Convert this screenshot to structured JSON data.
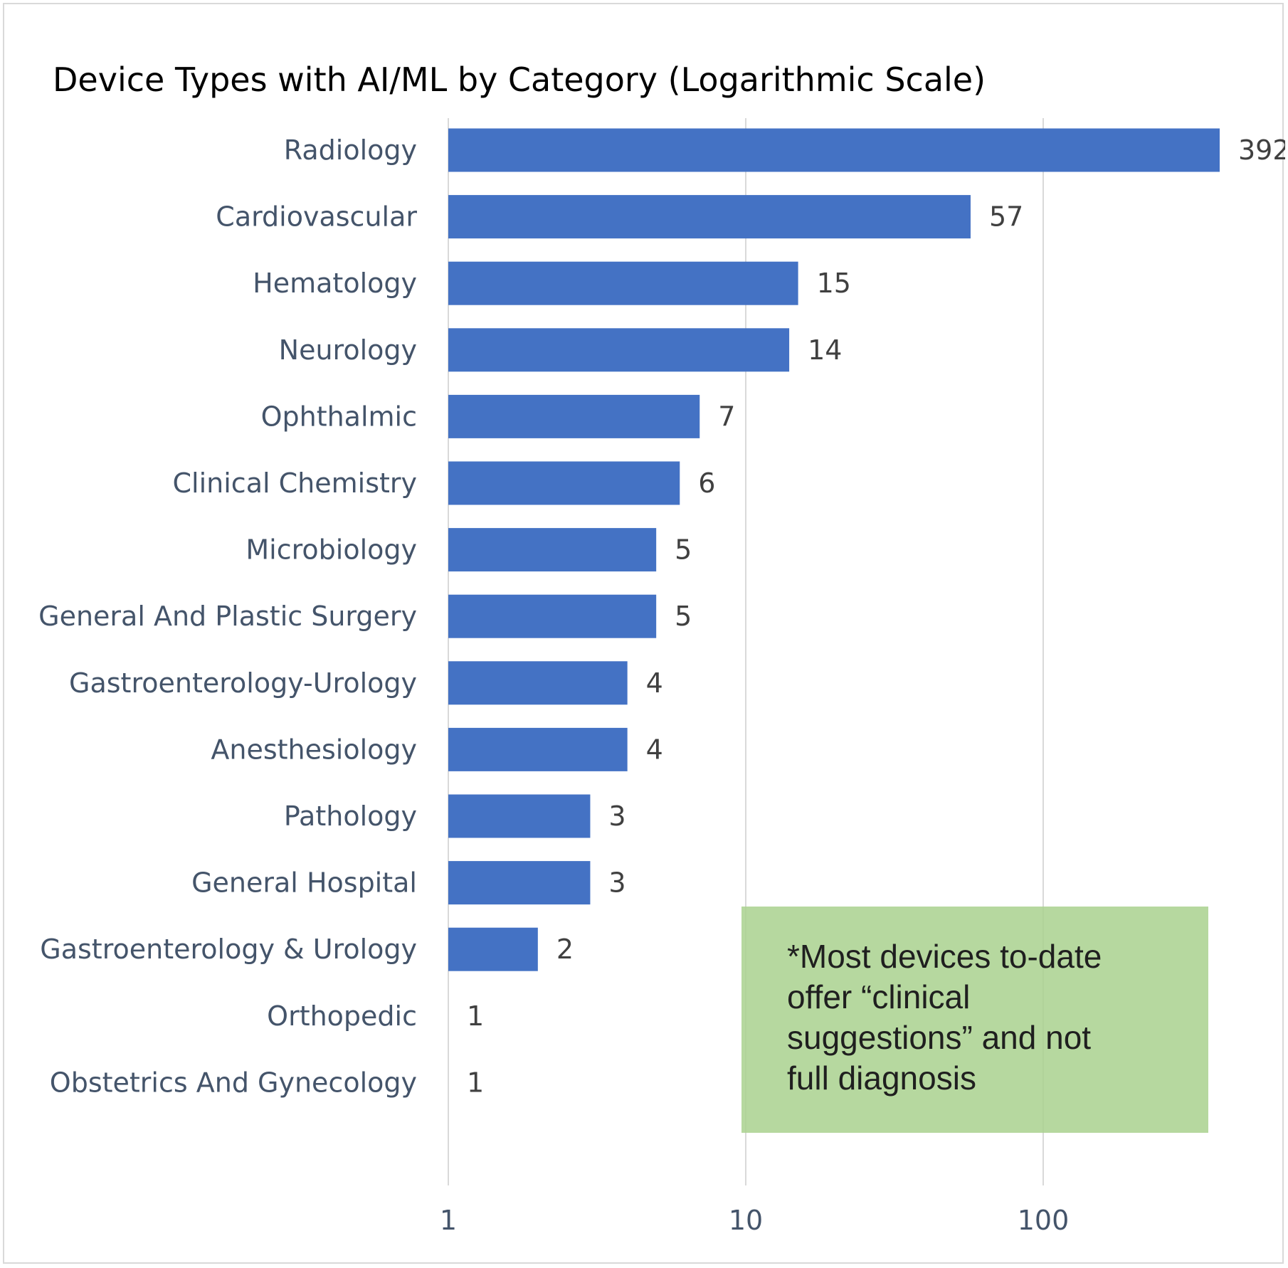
{
  "chart_data": {
    "type": "bar",
    "orientation": "horizontal",
    "title": "Device Types with AI/ML by Category (Logarithmic Scale)",
    "xlabel": "",
    "ylabel": "",
    "x_scale": "log",
    "xlim": [
      1,
      450
    ],
    "x_ticks": [
      "1",
      "10",
      "100"
    ],
    "grid": true,
    "bar_color": "#4472c4",
    "categories": [
      "Radiology",
      "Cardiovascular",
      "Hematology",
      "Neurology",
      "Ophthalmic",
      "Clinical Chemistry",
      "Microbiology",
      "General And Plastic Surgery",
      "Gastroenterology-Urology",
      "Anesthesiology",
      "Pathology",
      "General Hospital",
      "Gastroenterology & Urology",
      "Orthopedic",
      "Obstetrics And Gynecology"
    ],
    "values": [
      392,
      57,
      15,
      14,
      7,
      6,
      5,
      5,
      4,
      4,
      3,
      3,
      2,
      1,
      1
    ],
    "annotation": {
      "lines": [
        "*Most devices to-date",
        "offer “clinical",
        "suggestions” and not",
        "full diagnosis"
      ],
      "color": "#a9d18e"
    }
  }
}
